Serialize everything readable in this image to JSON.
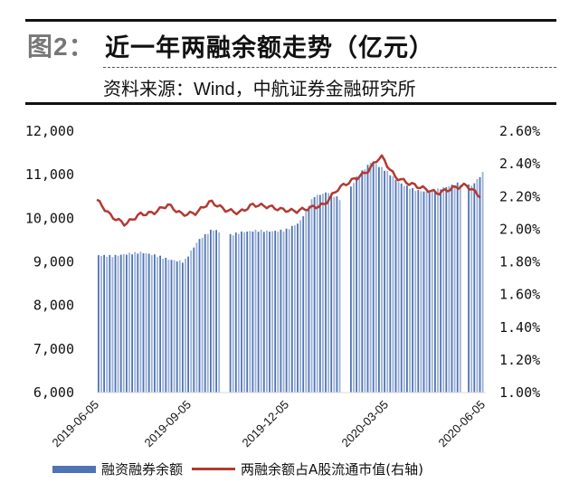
{
  "header": {
    "figure_label": "图2：",
    "title": "近一年两融余额走势（亿元）",
    "source": "资料来源：Wind，中航证券金融研究所"
  },
  "legend": {
    "bar_label": "融资融券余额",
    "line_label": "两融余额占A股流通市值(右轴)"
  },
  "colors": {
    "bar": "#4f73b5",
    "bar_light": "#9bb0d9",
    "line": "#b23a32"
  },
  "chart_data": {
    "type": "bar+line",
    "title": "近一年两融余额走势（亿元）",
    "xlabel": "",
    "ylabel": "",
    "ylim": [
      6000,
      12000
    ],
    "y2lim": [
      1.0,
      2.6
    ],
    "left_ticks": [
      "12,000",
      "11,000",
      "10,000",
      "9,000",
      "8,000",
      "7,000",
      "6,000"
    ],
    "right_ticks": [
      "2.60%",
      "2.40%",
      "2.20%",
      "2.00%",
      "1.80%",
      "1.60%",
      "1.40%",
      "1.20%",
      "1.00%"
    ],
    "x_tick_labels": [
      "2019-06-05",
      "2019-09-05",
      "2019-12-05",
      "2020-03-05",
      "2020-06-05"
    ],
    "grid": false,
    "legend_position": "bottom",
    "x": [
      "2019-06-05",
      "2019-06-19",
      "2019-07-03",
      "2019-07-17",
      "2019-07-31",
      "2019-08-14",
      "2019-08-28",
      "2019-09-11",
      "2019-09-25",
      "2019-10-09",
      "2019-10-23",
      "2019-11-06",
      "2019-11-20",
      "2019-12-04",
      "2019-12-18",
      "2020-01-01",
      "2020-01-15",
      "2020-02-05",
      "2020-02-19",
      "2020-03-04",
      "2020-03-18",
      "2020-04-01",
      "2020-04-15",
      "2020-04-29",
      "2020-05-13",
      "2020-05-27",
      "2020-06-10",
      "2020-06-24"
    ],
    "series": [
      {
        "name": "融资融券余额",
        "axis": "left",
        "type": "bar",
        "values": [
          9150,
          9130,
          9180,
          9220,
          9150,
          9050,
          9000,
          9500,
          9750,
          9600,
          9680,
          9720,
          9700,
          9720,
          9900,
          10500,
          10600,
          10400,
          10950,
          11300,
          11100,
          10800,
          10650,
          10600,
          10700,
          10800,
          10750,
          11150
        ]
      },
      {
        "name": "两融余额占A股流通市值(右轴)",
        "axis": "right",
        "type": "line",
        "values": [
          2.18,
          2.08,
          2.03,
          2.09,
          2.1,
          2.15,
          2.09,
          2.1,
          2.17,
          2.12,
          2.1,
          2.15,
          2.14,
          2.12,
          2.11,
          2.13,
          2.15,
          2.25,
          2.3,
          2.35,
          2.45,
          2.32,
          2.28,
          2.25,
          2.22,
          2.25,
          2.27,
          2.2
        ]
      }
    ]
  }
}
